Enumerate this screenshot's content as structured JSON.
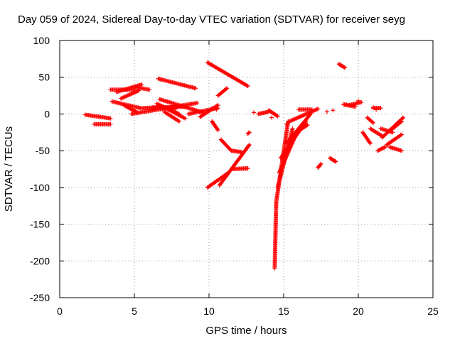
{
  "chart_data": {
    "type": "scatter",
    "title": "Day 059 of 2024, Sidereal Day-to-day VTEC variation (SDTVAR) for receiver seyg",
    "xlabel": "GPS time / hours",
    "ylabel": "SDTVAR / TECUs",
    "xlim": [
      0,
      25
    ],
    "ylim": [
      -250,
      100
    ],
    "xticks": [
      "0",
      "5",
      "10",
      "15",
      "20",
      "25"
    ],
    "yticks": [
      "100",
      "50",
      "0",
      "-50",
      "-100",
      "-150",
      "-200",
      "-250"
    ],
    "grid": true,
    "marker": "+",
    "color": "#ff0000",
    "segments": [
      {
        "x0": 1.7,
        "x1": 3.4,
        "y0": -1,
        "y1": -6
      },
      {
        "x0": 2.3,
        "x1": 3.4,
        "y0": -14,
        "y1": -14
      },
      {
        "x0": 3.4,
        "x1": 5.0,
        "y0": 33,
        "y1": 33
      },
      {
        "x0": 3.5,
        "x1": 5.4,
        "y0": 17,
        "y1": 8
      },
      {
        "x0": 3.8,
        "x1": 5.5,
        "y0": 30,
        "y1": 40
      },
      {
        "x0": 4.1,
        "x1": 5.3,
        "y0": 21,
        "y1": 32
      },
      {
        "x0": 4.3,
        "x1": 5.2,
        "y0": 12,
        "y1": 2
      },
      {
        "x0": 4.8,
        "x1": 9.2,
        "y0": 0,
        "y1": 15
      },
      {
        "x0": 5.0,
        "x1": 6.0,
        "y0": 37,
        "y1": 33
      },
      {
        "x0": 5.5,
        "x1": 8.5,
        "y0": 8,
        "y1": 10
      },
      {
        "x0": 6.2,
        "x1": 7.8,
        "y0": 9,
        "y1": 8
      },
      {
        "x0": 6.5,
        "x1": 8.0,
        "y0": 14,
        "y1": 0
      },
      {
        "x0": 6.6,
        "x1": 9.1,
        "y0": 48,
        "y1": 35
      },
      {
        "x0": 6.7,
        "x1": 9.6,
        "y0": 20,
        "y1": 2
      },
      {
        "x0": 7.0,
        "x1": 8.0,
        "y0": 3,
        "y1": -10
      },
      {
        "x0": 7.0,
        "x1": 8.4,
        "y0": 9,
        "y1": -6
      },
      {
        "x0": 8.6,
        "x1": 10.6,
        "y0": 0,
        "y1": 8
      },
      {
        "x0": 9.4,
        "x1": 10.6,
        "y0": -4,
        "y1": 12
      },
      {
        "x0": 9.9,
        "x1": 12.6,
        "y0": 70,
        "y1": 38
      },
      {
        "x0": 10.2,
        "x1": 10.6,
        "y0": -10,
        "y1": -22
      },
      {
        "x0": 10.6,
        "x1": 11.2,
        "y0": 25,
        "y1": 35
      },
      {
        "x0": 10.8,
        "x1": 11.5,
        "y0": -35,
        "y1": -50
      },
      {
        "x0": 11.5,
        "x1": 12.2,
        "y0": -50,
        "y1": -52
      },
      {
        "x0": 9.9,
        "x1": 11.3,
        "y0": -100,
        "y1": -80
      },
      {
        "x0": 10.7,
        "x1": 12.7,
        "y0": -97,
        "y1": -42
      },
      {
        "x0": 11.6,
        "x1": 12.6,
        "y0": -75,
        "y1": -74
      },
      {
        "x0": 12.6,
        "x1": 12.7,
        "y0": -27,
        "y1": -25
      },
      {
        "x0": 13.3,
        "x1": 14.0,
        "y0": 0,
        "y1": 3
      },
      {
        "x0": 14.0,
        "x1": 14.6,
        "y0": 5,
        "y1": -3
      },
      {
        "x0": 14.4,
        "x1": 14.5,
        "y0": -210,
        "y1": -120
      },
      {
        "x0": 14.5,
        "x1": 15.3,
        "y0": -120,
        "y1": -10
      },
      {
        "x0": 14.6,
        "x1": 15.6,
        "y0": -100,
        "y1": -20
      },
      {
        "x0": 14.7,
        "x1": 16.0,
        "y0": -80,
        "y1": -20
      },
      {
        "x0": 14.8,
        "x1": 16.5,
        "y0": -60,
        "y1": -10
      },
      {
        "x0": 15.2,
        "x1": 16.8,
        "y0": -40,
        "y1": 0
      },
      {
        "x0": 15.6,
        "x1": 16.6,
        "y0": -28,
        "y1": -15
      },
      {
        "x0": 15.4,
        "x1": 17.3,
        "y0": -10,
        "y1": 7
      },
      {
        "x0": 16.0,
        "x1": 16.9,
        "y0": 6,
        "y1": 6
      },
      {
        "x0": 17.3,
        "x1": 17.5,
        "y0": -73,
        "y1": -68
      },
      {
        "x0": 18.1,
        "x1": 18.5,
        "y0": -60,
        "y1": -65
      },
      {
        "x0": 18.7,
        "x1": 19.1,
        "y0": 68,
        "y1": 63
      },
      {
        "x0": 19.0,
        "x1": 19.8,
        "y0": 13,
        "y1": 10
      },
      {
        "x0": 19.4,
        "x1": 20.2,
        "y0": 12,
        "y1": 16
      },
      {
        "x0": 20.3,
        "x1": 20.8,
        "y0": -25,
        "y1": -40
      },
      {
        "x0": 20.6,
        "x1": 21.0,
        "y0": -5,
        "y1": -12
      },
      {
        "x0": 20.8,
        "x1": 21.6,
        "y0": -20,
        "y1": -30
      },
      {
        "x0": 21.0,
        "x1": 21.5,
        "y0": 8,
        "y1": 8
      },
      {
        "x0": 21.3,
        "x1": 21.8,
        "y0": -50,
        "y1": -45
      },
      {
        "x0": 21.5,
        "x1": 22.3,
        "y0": -20,
        "y1": -25
      },
      {
        "x0": 21.6,
        "x1": 23.0,
        "y0": -32,
        "y1": -5
      },
      {
        "x0": 21.9,
        "x1": 22.9,
        "y0": -42,
        "y1": -28
      },
      {
        "x0": 22.1,
        "x1": 22.9,
        "y0": -45,
        "y1": -50
      },
      {
        "x0": 22.3,
        "x1": 22.9,
        "y0": -20,
        "y1": -10
      }
    ],
    "points": [
      [
        9.9,
        5
      ],
      [
        10.2,
        8
      ],
      [
        10.5,
        6
      ],
      [
        15.2,
        -14
      ],
      [
        18.3,
        5
      ],
      [
        19.2,
        13
      ],
      [
        20.0,
        18
      ],
      [
        21.2,
        6
      ],
      [
        21.0,
        9
      ],
      [
        17.9,
        3
      ],
      [
        14.2,
        -5
      ],
      [
        13.0,
        2
      ]
    ]
  }
}
